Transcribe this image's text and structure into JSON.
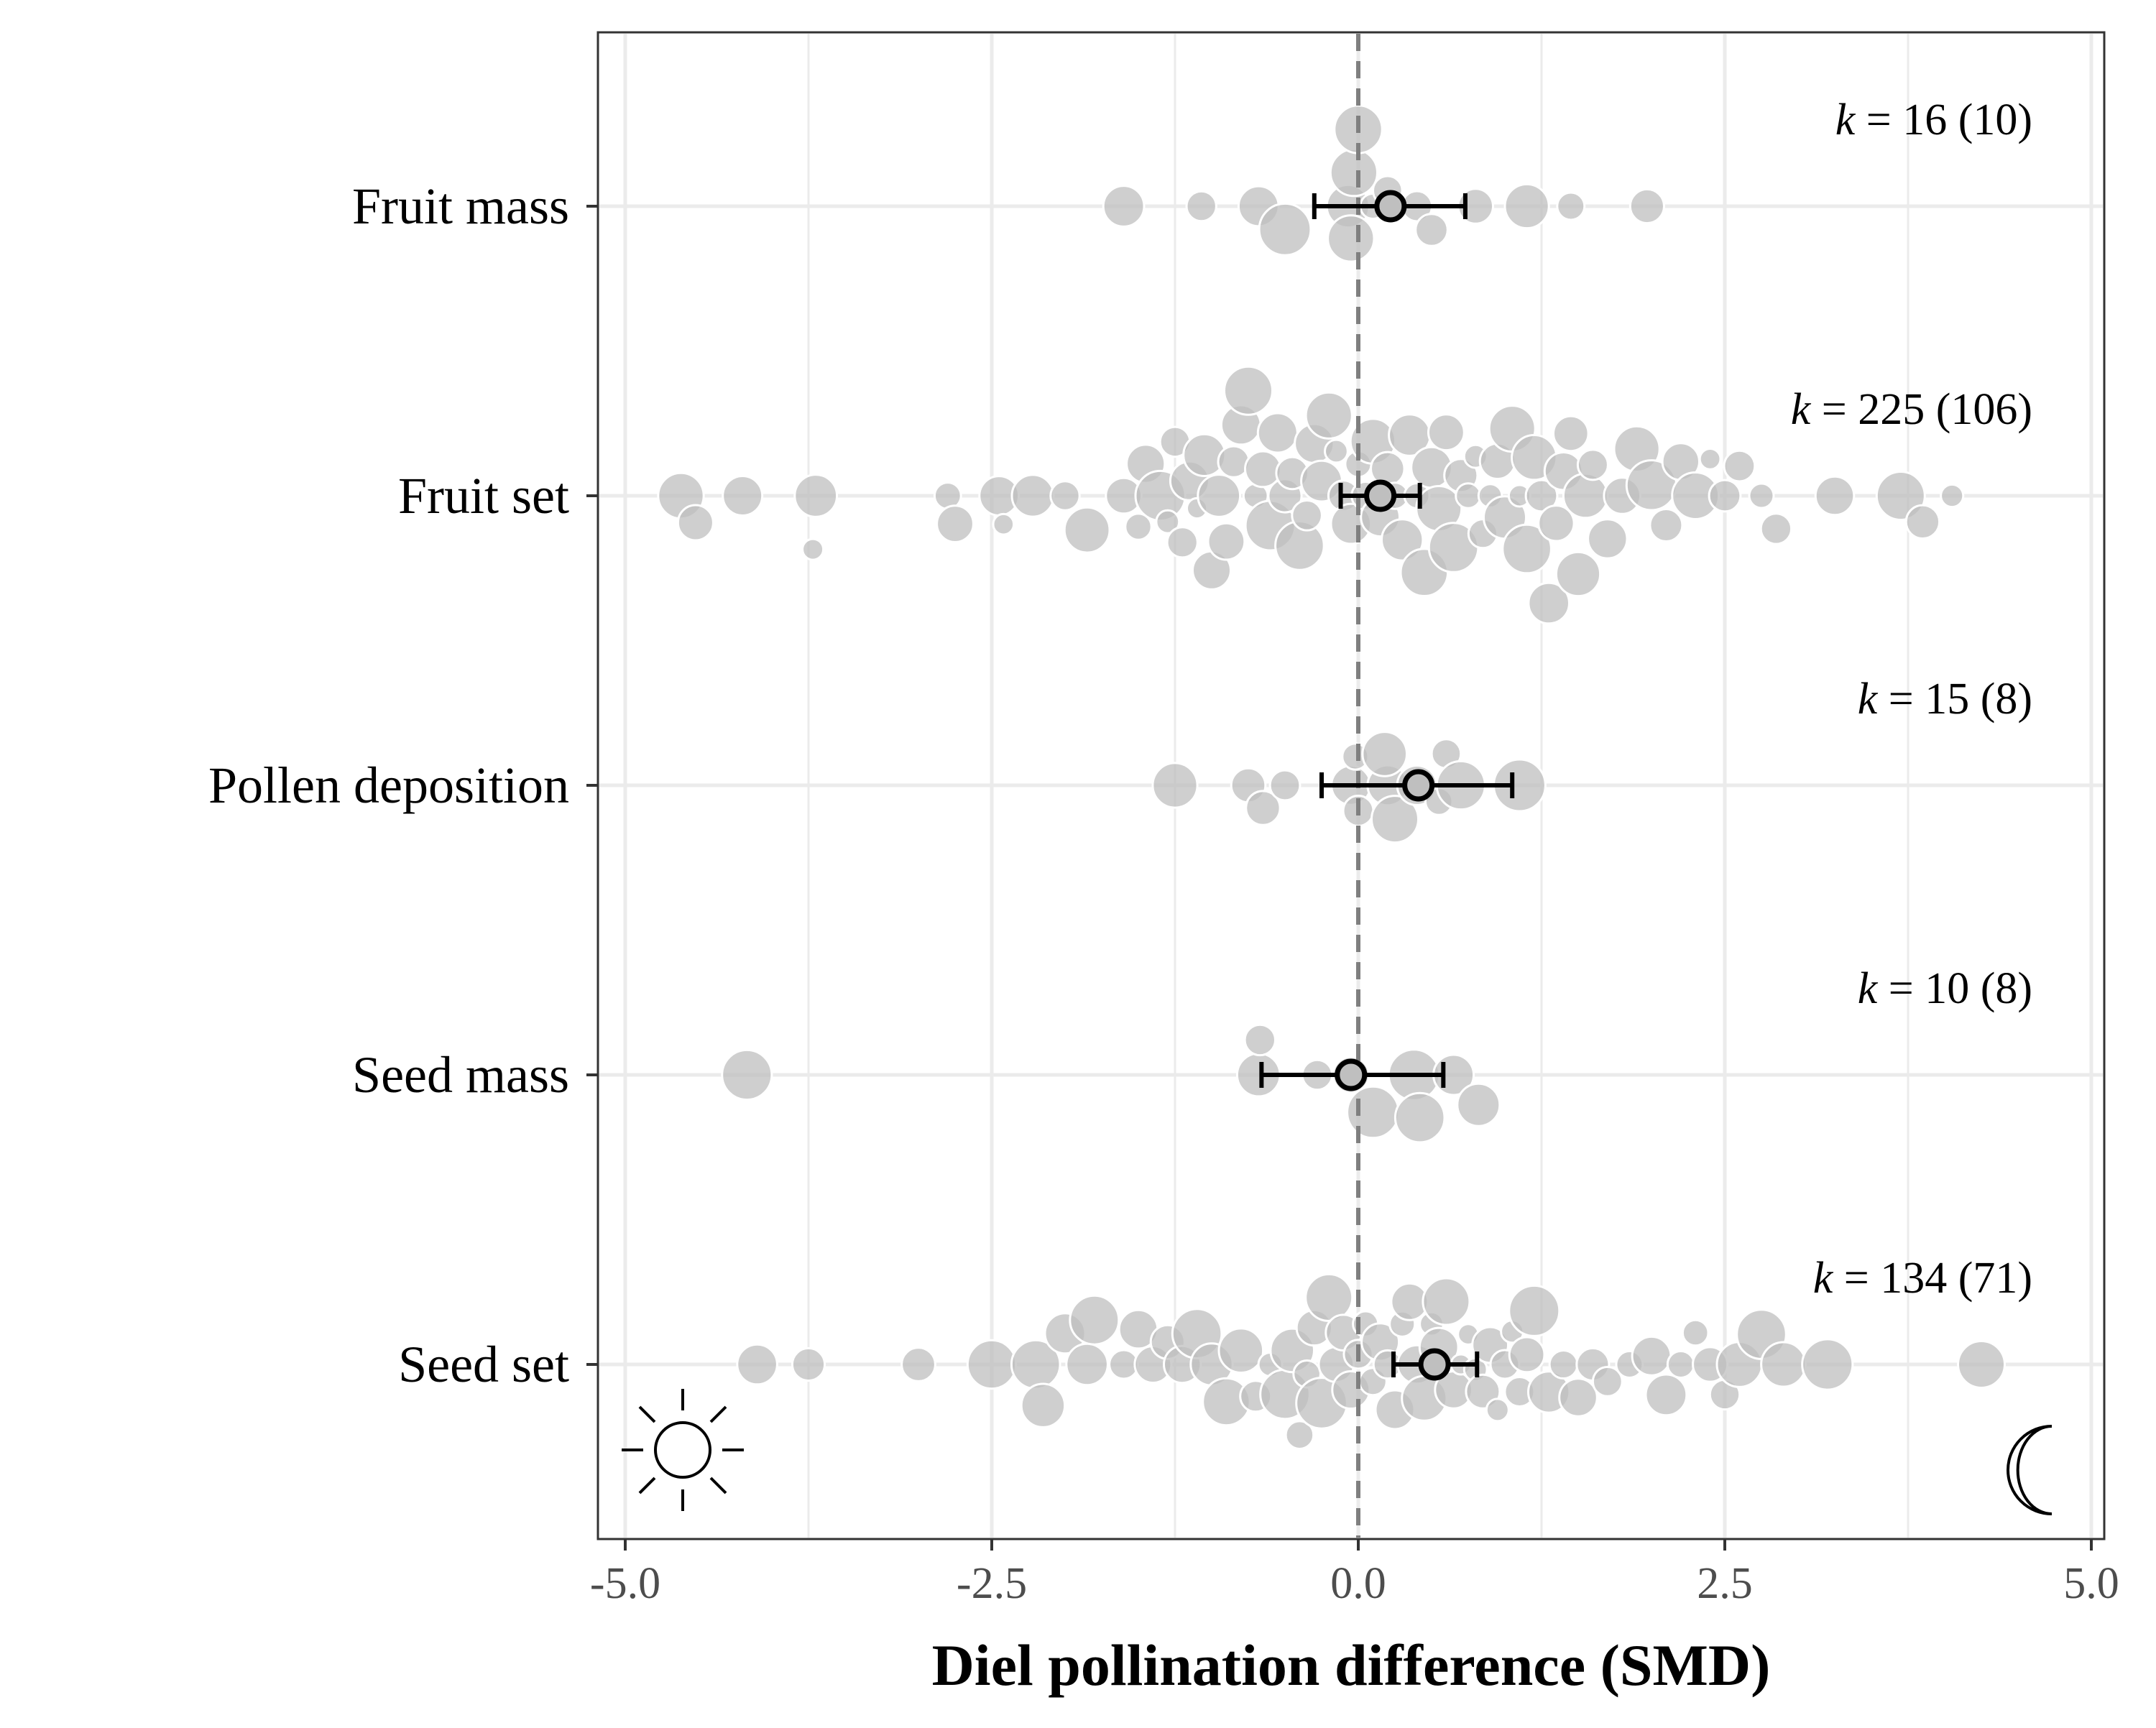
{
  "chart_data": {
    "type": "scatter",
    "subtype": "beeswarm-forest",
    "title": "",
    "xlabel": "Diel pollination difference (SMD)",
    "ylabel": "",
    "xlim": [
      -5.0,
      5.0
    ],
    "x_ticks": [
      "-5.0",
      "-2.5",
      "0.0",
      "2.5",
      "5.0"
    ],
    "x_tick_values": [
      -5.0,
      -2.5,
      0.0,
      2.5,
      5.0
    ],
    "reference_line": {
      "x": 0.0,
      "style": "dashed",
      "color": "#7f7f7f"
    },
    "grid": true,
    "point_color": "#bfbfbf",
    "estimate_color": "#000000",
    "categories": [
      "Fruit mass",
      "Fruit set",
      "Pollen deposition",
      "Seed mass",
      "Seed set"
    ],
    "series": [
      {
        "category": "Fruit mass",
        "estimate": 0.22,
        "ci_low": -0.3,
        "ci_high": 0.73,
        "k_text": "k",
        "k_value_text": "= 16 (10)",
        "points": [
          -1.6,
          -1.07,
          -0.68,
          -0.5,
          -0.07,
          -0.05,
          -0.03,
          0.1,
          0.4,
          0.5,
          0.8,
          1.15,
          1.45,
          1.97,
          0.0,
          0.2
        ]
      },
      {
        "category": "Fruit set",
        "estimate": 0.15,
        "ci_low": -0.12,
        "ci_high": 0.42,
        "k_text": "k",
        "k_value_text": "= 225 (106)",
        "points": [
          -4.62,
          -4.52,
          -4.2,
          -3.7,
          -3.72,
          -2.8,
          -2.75,
          -2.45,
          -2.42,
          -2.22,
          -2.0,
          -1.85,
          -1.6,
          -1.5,
          -1.45,
          -1.35,
          -1.3,
          -1.25,
          -1.2,
          -1.15,
          -1.1,
          -1.05,
          -1.0,
          -0.95,
          -0.9,
          -0.85,
          -0.8,
          -0.75,
          -0.7,
          -0.65,
          -0.6,
          -0.55,
          -0.5,
          -0.45,
          -0.4,
          -0.35,
          -0.3,
          -0.25,
          -0.2,
          -0.15,
          -0.1,
          -0.05,
          0.0,
          0.05,
          0.1,
          0.15,
          0.2,
          0.25,
          0.3,
          0.35,
          0.4,
          0.45,
          0.5,
          0.55,
          0.6,
          0.65,
          0.7,
          0.75,
          0.8,
          0.85,
          0.9,
          0.95,
          1.0,
          1.05,
          1.1,
          1.15,
          1.2,
          1.25,
          1.3,
          1.35,
          1.4,
          1.45,
          1.5,
          1.55,
          1.6,
          1.7,
          1.8,
          1.9,
          2.0,
          2.1,
          2.2,
          2.3,
          2.4,
          2.5,
          2.6,
          2.75,
          2.85,
          3.25,
          3.7,
          3.85,
          4.05
        ]
      },
      {
        "category": "Pollen deposition",
        "estimate": 0.41,
        "ci_low": -0.25,
        "ci_high": 1.05,
        "k_text": "k",
        "k_value_text": "= 15 (8)",
        "points": [
          -1.25,
          -0.75,
          -0.65,
          -0.5,
          -0.05,
          -0.02,
          0.0,
          0.2,
          0.25,
          0.4,
          0.55,
          0.6,
          0.7,
          1.1,
          0.18
        ]
      },
      {
        "category": "Seed mass",
        "estimate": -0.05,
        "ci_low": -0.66,
        "ci_high": 0.58,
        "k_text": "k",
        "k_value_text": "= 10 (8)",
        "points": [
          -4.17,
          -0.68,
          -0.67,
          -0.28,
          -0.05,
          0.1,
          0.38,
          0.42,
          0.65,
          0.82
        ]
      },
      {
        "category": "Seed set",
        "estimate": 0.52,
        "ci_low": 0.24,
        "ci_high": 0.81,
        "k_text": "k",
        "k_value_text": "= 134 (71)",
        "points": [
          -4.1,
          -3.75,
          -3.0,
          -2.5,
          -2.2,
          -2.15,
          -2.0,
          -1.85,
          -1.8,
          -1.6,
          -1.5,
          -1.4,
          -1.3,
          -1.2,
          -1.1,
          -1.0,
          -0.9,
          -0.8,
          -0.7,
          -0.6,
          -0.5,
          -0.45,
          -0.4,
          -0.35,
          -0.3,
          -0.25,
          -0.2,
          -0.15,
          -0.1,
          -0.05,
          0.0,
          0.05,
          0.1,
          0.15,
          0.2,
          0.25,
          0.3,
          0.35,
          0.4,
          0.45,
          0.5,
          0.55,
          0.6,
          0.65,
          0.7,
          0.75,
          0.8,
          0.85,
          0.9,
          0.95,
          1.0,
          1.05,
          1.1,
          1.15,
          1.2,
          1.3,
          1.4,
          1.5,
          1.6,
          1.7,
          1.85,
          2.0,
          2.1,
          2.2,
          2.3,
          2.4,
          2.5,
          2.6,
          2.75,
          2.9,
          3.2,
          4.25
        ]
      }
    ],
    "icons": {
      "left": "sun-icon",
      "right": "moon-icon"
    }
  }
}
